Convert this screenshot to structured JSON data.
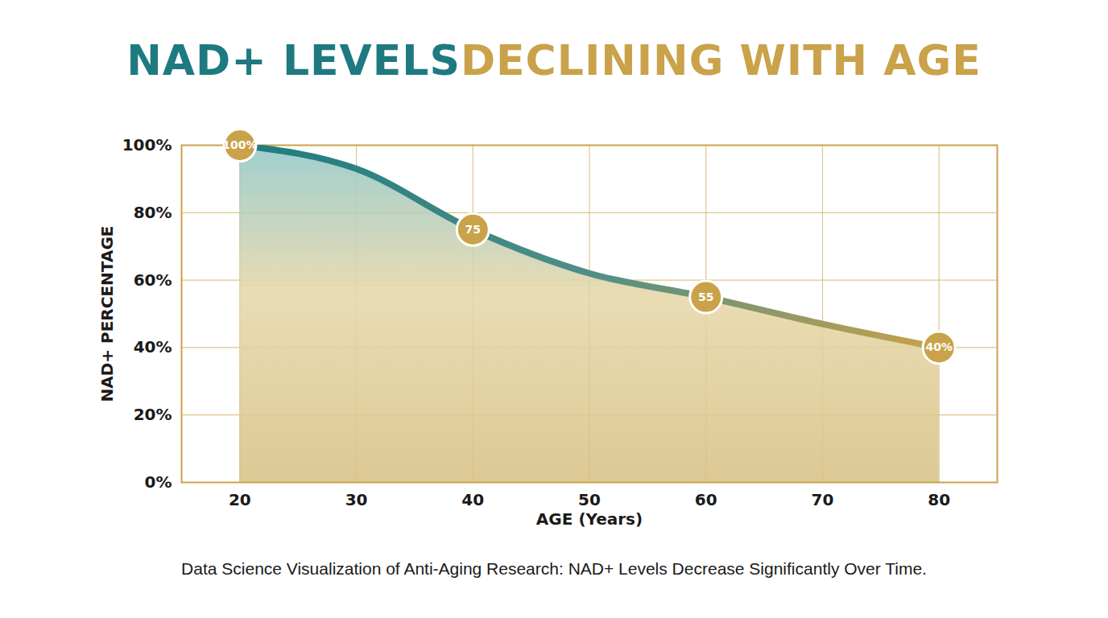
{
  "chart_data": {
    "type": "area",
    "title": "NAD+ LEVELS DECLINING WITH AGE",
    "caption": "Data Science Visualization of Anti-Aging Research: NAD+ Levels Decrease Significantly Over Time.",
    "xlabel": "AGE (Years)",
    "ylabel": "NAD+ PERCENTAGE",
    "x": [
      20,
      30,
      40,
      50,
      60,
      70,
      80
    ],
    "values": [
      100,
      93,
      75,
      62,
      55,
      47,
      40
    ],
    "value_labels": [
      "100%",
      null,
      "75",
      null,
      "55",
      null,
      "40%"
    ],
    "data_labels": true,
    "marker": "circle",
    "color": "#1e7a80",
    "xlim": [
      15,
      85
    ],
    "xticks": [
      20,
      30,
      40,
      50,
      60,
      70,
      80
    ],
    "ylim": [
      0,
      100
    ],
    "yticks": [
      {
        "value": 0,
        "label": "0%"
      },
      {
        "value": 20,
        "label": "20%"
      },
      {
        "value": 40,
        "label": "40%"
      },
      {
        "value": 60,
        "label": "60%"
      },
      {
        "value": 80,
        "label": "80%"
      },
      {
        "value": 100,
        "label": "100%"
      }
    ],
    "grid": true
  }
}
